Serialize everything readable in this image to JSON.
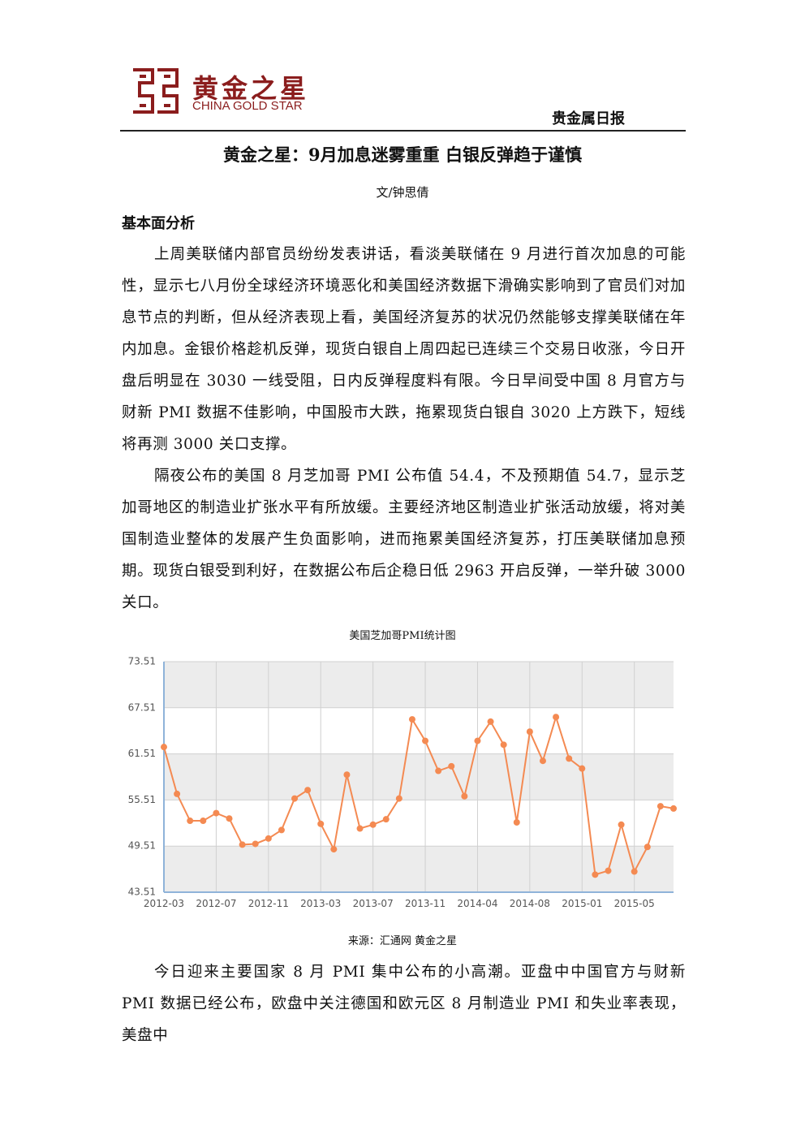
{
  "header": {
    "brand_cn": "黄金之星",
    "brand_en": "CHINA GOLD STAR",
    "report_name": "贵金属日报"
  },
  "article": {
    "title": "黄金之星：9月加息迷雾重重 白银反弹趋于谨慎",
    "author": "文/钟思倩",
    "section": "基本面分析",
    "paragraphs": [
      "上周美联储内部官员纷纷发表讲话，看淡美联储在 9 月进行首次加息的可能性，显示七八月份全球经济环境恶化和美国经济数据下滑确实影响到了官员们对加息节点的判断，但从经济表现上看，美国经济复苏的状况仍然能够支撑美联储在年内加息。金银价格趁机反弹，现货白银自上周四起已连续三个交易日收涨，今日开盘后明显在 3030 一线受阻，日内反弹程度料有限。今日早间受中国 8 月官方与财新 PMI 数据不佳影响，中国股市大跌，拖累现货白银自 3020 上方跌下，短线将再测 3000 关口支撑。",
      "隔夜公布的美国 8 月芝加哥 PMI 公布值 54.4，不及预期值 54.7，显示芝加哥地区的制造业扩张水平有所放缓。主要经济地区制造业扩张活动放缓，将对美国制造业整体的发展产生负面影响，进而拖累美国经济复苏，打压美联储加息预期。现货白银受到利好，在数据公布后企稳日低 2963 开启反弹，一举升破 3000 关口。",
      "今日迎来主要国家 8 月 PMI 集中公布的小高潮。亚盘中中国官方与财新 PMI 数据已经公布，欧盘中关注德国和欧元区 8 月制造业 PMI 和失业率表现，美盘中"
    ]
  },
  "chart_data": {
    "type": "line",
    "title": "美国芝加哥PMI统计图",
    "source": "来源：汇通网 黄金之星",
    "categories": [
      "2012-03",
      null,
      null,
      null,
      "2012-07",
      null,
      null,
      null,
      "2012-11",
      null,
      null,
      null,
      "2013-03",
      null,
      null,
      null,
      "2013-07",
      null,
      null,
      null,
      "2013-11",
      null,
      null,
      null,
      "2014-04",
      null,
      null,
      null,
      "2014-08",
      null,
      null,
      null,
      "2015-01",
      null,
      null,
      null,
      "2015-05",
      null,
      null,
      null
    ],
    "values": [
      62.4,
      56.3,
      52.8,
      52.8,
      53.8,
      53.1,
      49.7,
      49.8,
      50.5,
      51.6,
      55.7,
      56.8,
      52.4,
      49.1,
      58.8,
      51.8,
      52.3,
      53.0,
      55.7,
      66.0,
      63.2,
      59.3,
      59.9,
      56.0,
      63.2,
      65.7,
      62.7,
      52.6,
      64.4,
      60.6,
      66.3,
      60.9,
      59.6,
      45.8,
      46.3,
      52.3,
      46.2,
      49.4,
      54.7,
      54.4
    ],
    "color": "#f48a52",
    "ylim": [
      43.51,
      73.51
    ],
    "yticks": [
      43.51,
      49.51,
      55.51,
      61.51,
      67.51,
      73.51
    ],
    "grid": true
  }
}
